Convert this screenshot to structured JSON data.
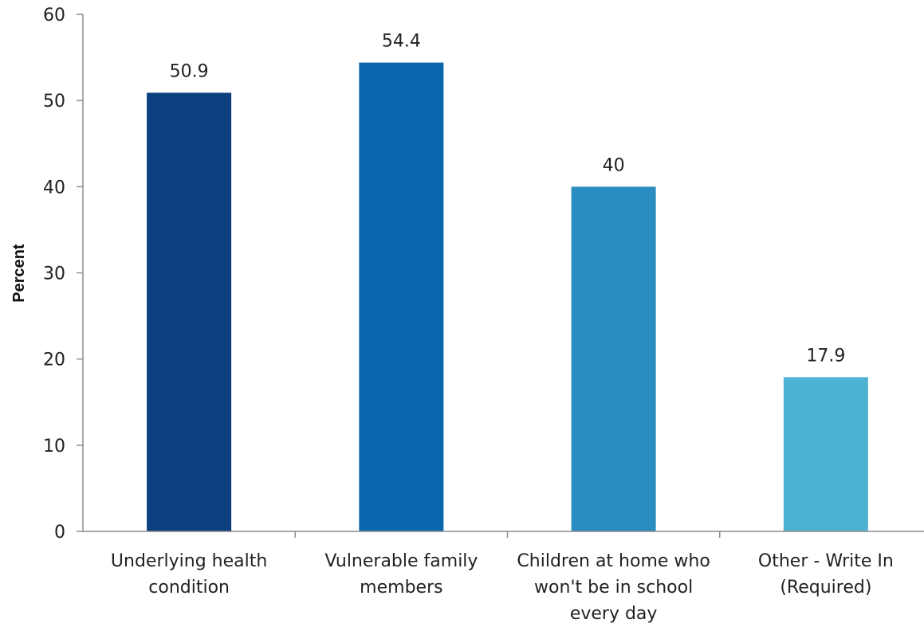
{
  "chart_data": {
    "type": "bar",
    "title": "",
    "xlabel": "",
    "ylabel": "Percent",
    "ylim": [
      0,
      60
    ],
    "yticks": [
      0,
      10,
      20,
      30,
      40,
      50,
      60
    ],
    "grid": false,
    "categories": [
      [
        "Underlying health",
        "condition"
      ],
      [
        "Vulnerable family",
        "members"
      ],
      [
        "Children at home who",
        "won't be in school",
        "every day"
      ],
      [
        "Other - Write In",
        "(Required)"
      ]
    ],
    "values": [
      50.9,
      54.4,
      40,
      17.9
    ],
    "value_labels": [
      "50.9",
      "54.4",
      "40",
      "17.9"
    ],
    "colors": [
      "#0b3f7d",
      "#0a67ad",
      "#2b8cc0",
      "#4eb2d3"
    ]
  }
}
